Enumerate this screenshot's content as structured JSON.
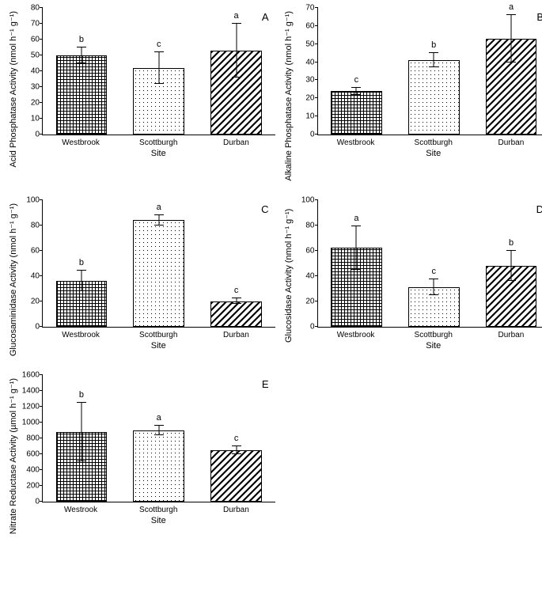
{
  "colors": {
    "axis": "#000000",
    "background": "#ffffff"
  },
  "panels": [
    {
      "id": "A",
      "ylabel": "Acid Phosphatase Activity (nmol h⁻¹ g⁻¹)",
      "ylim": [
        0,
        80
      ],
      "ytick_step": 10,
      "categories": [
        "Westbrook",
        "Scottburgh",
        "Durban"
      ],
      "xlabel": "Site",
      "values": [
        50,
        42,
        53
      ],
      "err": [
        5,
        10,
        17
      ],
      "sig": [
        "b",
        "c",
        "a"
      ],
      "patterns": [
        "pat-dash",
        "pat-dots",
        "pat-diag"
      ]
    },
    {
      "id": "B",
      "ylabel": "Alkaline Phosphatase Activity (nmol h⁻¹ g⁻¹)",
      "ylim": [
        0,
        70
      ],
      "ytick_step": 10,
      "categories": [
        "Westbrook",
        "Scottburgh",
        "Durban"
      ],
      "xlabel": "Site",
      "values": [
        24,
        41,
        53
      ],
      "err": [
        2,
        4,
        13
      ],
      "sig": [
        "c",
        "b",
        "a"
      ],
      "patterns": [
        "pat-dash",
        "pat-dots",
        "pat-diag"
      ]
    },
    {
      "id": "C",
      "ylabel": "Glucosaminidase Activity (nmol h⁻¹ g⁻¹)",
      "ylim": [
        0,
        100
      ],
      "ytick_step": 20,
      "categories": [
        "Westbrook",
        "Scottburgh",
        "Durban"
      ],
      "xlabel": "Site",
      "values": [
        36,
        84,
        20
      ],
      "err": [
        8,
        4,
        2
      ],
      "sig": [
        "b",
        "a",
        "c"
      ],
      "patterns": [
        "pat-dash",
        "pat-dots",
        "pat-diag"
      ]
    },
    {
      "id": "D",
      "ylabel": "Glucosidase Activity (nmol h⁻¹ g⁻¹)",
      "ylim": [
        0,
        100
      ],
      "ytick_step": 20,
      "categories": [
        "Westbrook",
        "Scottburgh",
        "Durban"
      ],
      "xlabel": "Site",
      "values": [
        62,
        31,
        48
      ],
      "err": [
        17,
        6,
        12
      ],
      "sig": [
        "a",
        "c",
        "b"
      ],
      "patterns": [
        "pat-dash",
        "pat-dots",
        "pat-diag"
      ]
    },
    {
      "id": "E",
      "ylabel": "Nitrate Reductase Activity (µmol h⁻¹ g⁻¹)",
      "ylim": [
        0,
        1600
      ],
      "ytick_step": 200,
      "categories": [
        "Westrook",
        "Scottburgh",
        "Durban"
      ],
      "xlabel": "Site",
      "values": [
        880,
        900,
        650
      ],
      "err": [
        370,
        60,
        50
      ],
      "sig": [
        "b",
        "a",
        "c"
      ],
      "patterns": [
        "pat-dash",
        "pat-dots",
        "pat-diag"
      ]
    }
  ]
}
